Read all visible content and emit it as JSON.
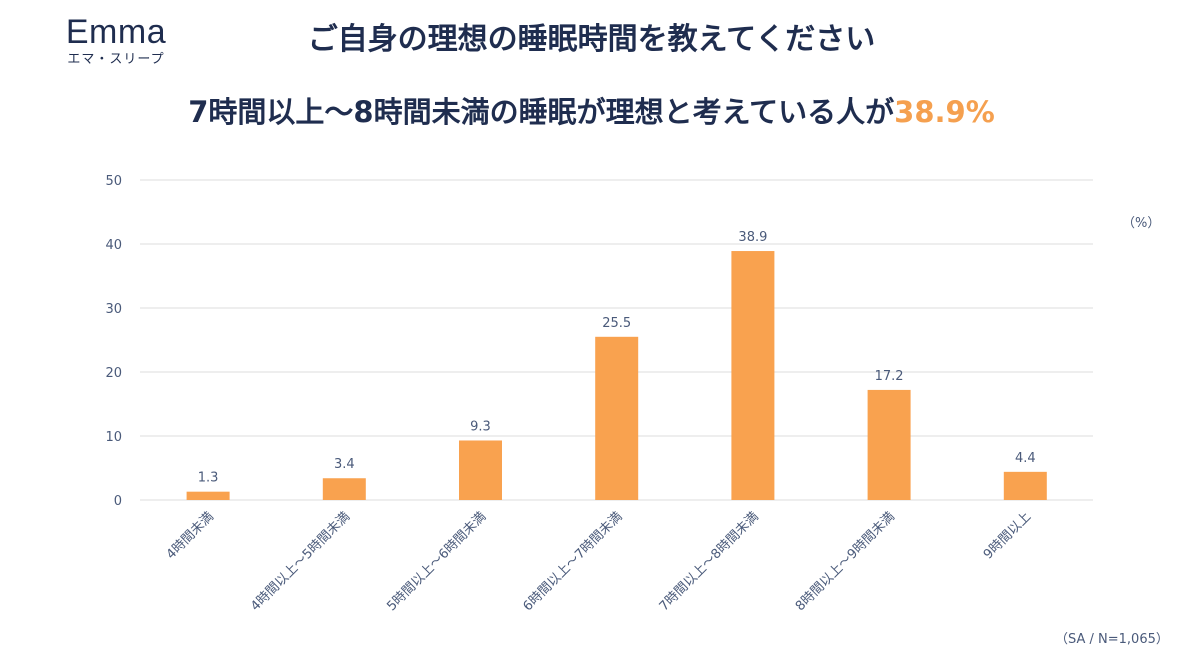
{
  "logo": {
    "wordmark": "Emma",
    "subtitle": "エマ・スリープ"
  },
  "header": {
    "title": "ご自身の理想の睡眠時間を教えてください",
    "subtitle_main": "7時間以上〜8時間未満の睡眠が理想と考えている人が",
    "subtitle_highlight": "38.9%"
  },
  "unit_label": "（%）",
  "footnote": "（SA / N=1,065）",
  "colors": {
    "bar": "#f9a24f",
    "highlight": "#f5a04f",
    "text": "#1f2d4f",
    "axis_text": "#4a5a7a",
    "grid": "#dcdcdc"
  },
  "chart_data": {
    "type": "bar",
    "categories": [
      "4時間未満",
      "4時間以上〜5時間未満",
      "5時間以上〜6時間未満",
      "6時間以上〜7時間未満",
      "7時間以上〜8時間未満",
      "8時間以上〜9時間未満",
      "9時間以上"
    ],
    "values": [
      1.3,
      3.4,
      9.3,
      25.5,
      38.9,
      17.2,
      4.4
    ],
    "value_labels": [
      "1.3",
      "3.4",
      "9.3",
      "25.5",
      "38.9",
      "17.2",
      "4.4"
    ],
    "yticks": [
      0,
      10,
      20,
      30,
      40,
      50
    ],
    "ylim": [
      0,
      50
    ],
    "grid": true,
    "title": "ご自身の理想の睡眠時間を教えてください"
  }
}
